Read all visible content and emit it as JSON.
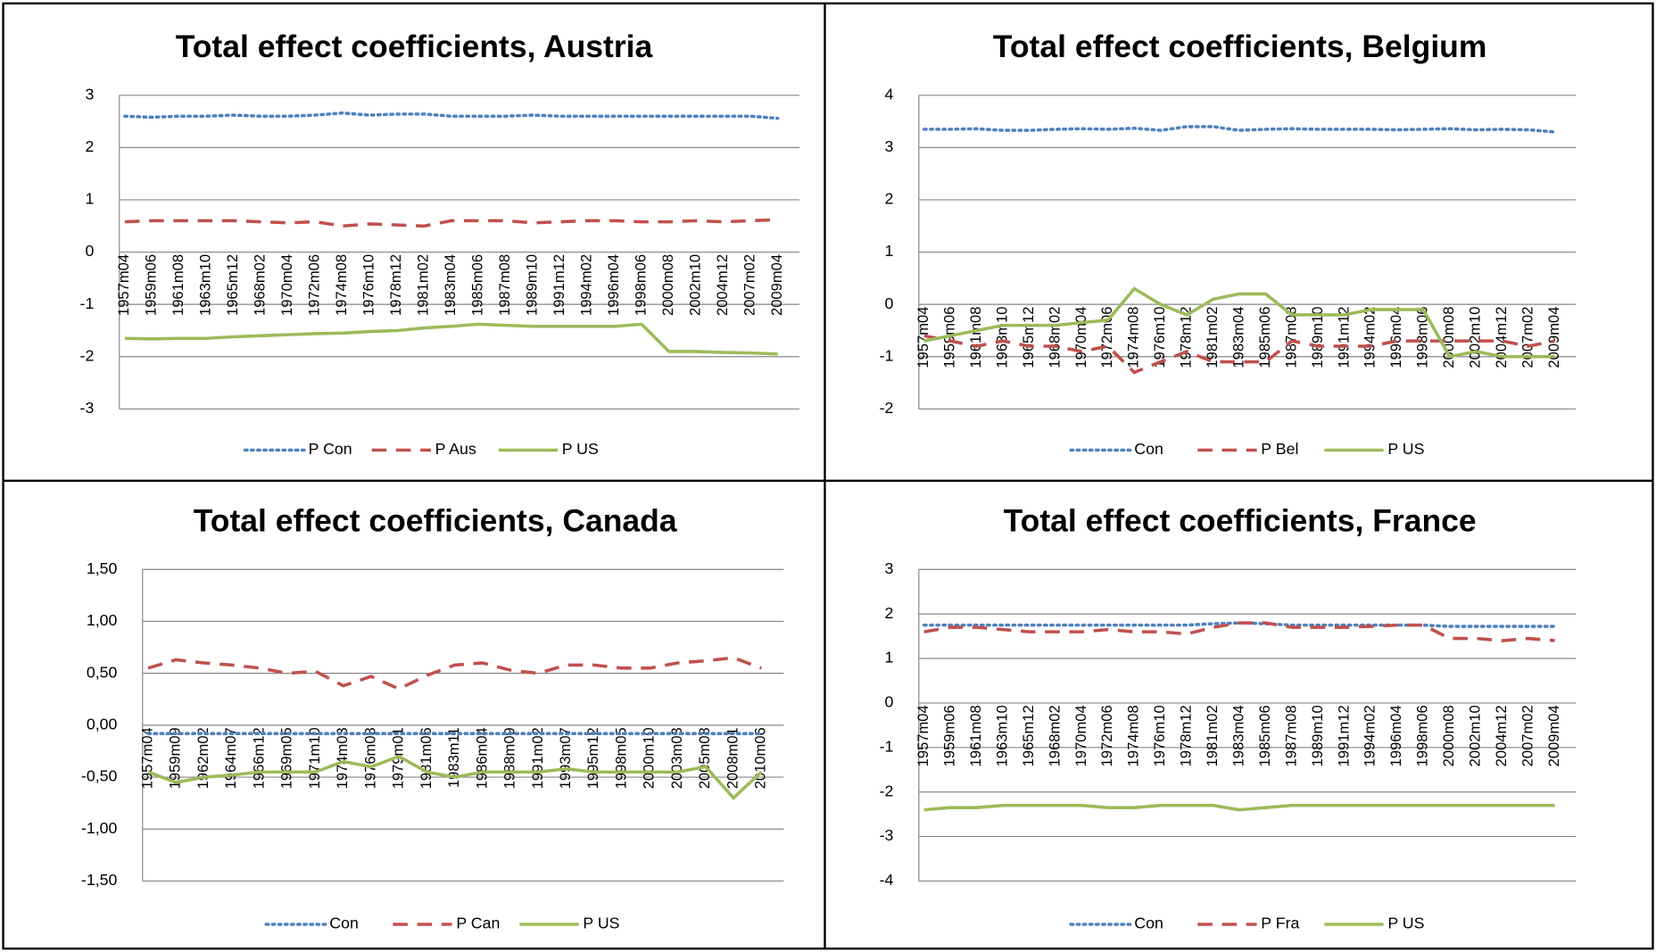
{
  "chart_data": [
    {
      "type": "line",
      "title": "Total effect coefficients, Austria",
      "categories": [
        "1957m04",
        "1959m06",
        "1961m08",
        "1963m10",
        "1965m12",
        "1968m02",
        "1970m04",
        "1972m06",
        "1974m08",
        "1976m10",
        "1978m12",
        "1981m02",
        "1983m04",
        "1985m06",
        "1987m08",
        "1989m10",
        "1991m12",
        "1994m02",
        "1996m04",
        "1998m06",
        "2000m08",
        "2002m10",
        "2004m12",
        "2007m02",
        "2009m04"
      ],
      "series": [
        {
          "name": "P Con",
          "color": "#4f81bd",
          "style": "dotted",
          "values": [
            2.6,
            2.58,
            2.6,
            2.6,
            2.62,
            2.6,
            2.6,
            2.62,
            2.66,
            2.62,
            2.64,
            2.64,
            2.6,
            2.6,
            2.6,
            2.62,
            2.6,
            2.6,
            2.6,
            2.6,
            2.6,
            2.6,
            2.6,
            2.6,
            2.56
          ]
        },
        {
          "name": "P Aus",
          "color": "#c0504d",
          "style": "dashed",
          "values": [
            0.58,
            0.6,
            0.6,
            0.6,
            0.6,
            0.58,
            0.56,
            0.58,
            0.5,
            0.54,
            0.52,
            0.5,
            0.6,
            0.6,
            0.6,
            0.56,
            0.58,
            0.6,
            0.6,
            0.58,
            0.58,
            0.6,
            0.58,
            0.6,
            0.62
          ]
        },
        {
          "name": "P US",
          "color": "#9bbb59",
          "style": "solid",
          "values": [
            -1.65,
            -1.66,
            -1.65,
            -1.65,
            -1.62,
            -1.6,
            -1.58,
            -1.56,
            -1.55,
            -1.52,
            -1.5,
            -1.45,
            -1.42,
            -1.38,
            -1.4,
            -1.42,
            -1.42,
            -1.42,
            -1.42,
            -1.38,
            -1.9,
            -1.9,
            -1.92,
            -1.93,
            -1.95
          ]
        }
      ],
      "ylim": [
        -3,
        3
      ],
      "yticks": [
        -3,
        -2,
        -1,
        0,
        1,
        2,
        3
      ],
      "grid": true,
      "legend": "bottom"
    },
    {
      "type": "line",
      "title": "Total effect coefficients, Belgium",
      "categories": [
        "1957m04",
        "1959m06",
        "1961m08",
        "1963m10",
        "1965m12",
        "1968m02",
        "1970m04",
        "1972m06",
        "1974m08",
        "1976m10",
        "1978m12",
        "1981m02",
        "1983m04",
        "1985m06",
        "1987m08",
        "1989m10",
        "1991m12",
        "1994m02",
        "1996m04",
        "1998m06",
        "2000m08",
        "2002m10",
        "2004m12",
        "2007m02",
        "2009m04"
      ],
      "series": [
        {
          "name": "Con",
          "color": "#4f81bd",
          "style": "dotted",
          "values": [
            3.35,
            3.35,
            3.36,
            3.33,
            3.33,
            3.35,
            3.36,
            3.35,
            3.37,
            3.33,
            3.4,
            3.4,
            3.33,
            3.35,
            3.36,
            3.35,
            3.35,
            3.35,
            3.34,
            3.35,
            3.36,
            3.34,
            3.35,
            3.34,
            3.3
          ]
        },
        {
          "name": "P Bel",
          "color": "#c0504d",
          "style": "dashed",
          "values": [
            -0.6,
            -0.7,
            -0.8,
            -0.7,
            -0.8,
            -0.8,
            -0.9,
            -0.8,
            -1.3,
            -1.1,
            -0.9,
            -1.1,
            -1.1,
            -1.1,
            -0.7,
            -0.8,
            -0.8,
            -0.8,
            -0.7,
            -0.7,
            -0.7,
            -0.7,
            -0.7,
            -0.8,
            -0.7
          ]
        },
        {
          "name": "P US",
          "color": "#9bbb59",
          "style": "solid",
          "values": [
            -0.7,
            -0.6,
            -0.5,
            -0.4,
            -0.4,
            -0.4,
            -0.35,
            -0.3,
            0.3,
            0,
            -0.2,
            0.1,
            0.2,
            0.2,
            -0.2,
            -0.2,
            -0.2,
            -0.1,
            -0.1,
            -0.1,
            -1,
            -0.9,
            -1,
            -1,
            -1
          ]
        }
      ],
      "ylim": [
        -2,
        4
      ],
      "yticks": [
        -2,
        -1,
        0,
        1,
        2,
        3,
        4
      ],
      "grid": true,
      "legend": "bottom"
    },
    {
      "type": "line",
      "title": "Total effect coefficients, Canada",
      "categories": [
        "1957m04",
        "1959m09",
        "1962m02",
        "1964m07",
        "1966m12",
        "1969m05",
        "1971m10",
        "1974m03",
        "1976m08",
        "1979m01",
        "1981m06",
        "1983m11",
        "1986m04",
        "1988m09",
        "1991m02",
        "1993m07",
        "1995m12",
        "1998m05",
        "2000m10",
        "2003m03",
        "2005m08",
        "2008m01",
        "2010m06"
      ],
      "series": [
        {
          "name": "Con",
          "color": "#4f81bd",
          "style": "dotted",
          "values": [
            -0.08,
            -0.08,
            -0.08,
            -0.08,
            -0.08,
            -0.08,
            -0.08,
            -0.08,
            -0.08,
            -0.08,
            -0.08,
            -0.08,
            -0.08,
            -0.08,
            -0.08,
            -0.08,
            -0.08,
            -0.08,
            -0.08,
            -0.08,
            -0.08,
            -0.08,
            -0.08
          ]
        },
        {
          "name": "P Can",
          "color": "#c0504d",
          "style": "dashed",
          "values": [
            0.55,
            0.63,
            0.6,
            0.58,
            0.55,
            0.5,
            0.52,
            0.38,
            0.47,
            0.35,
            0.48,
            0.58,
            0.6,
            0.53,
            0.5,
            0.58,
            0.58,
            0.55,
            0.55,
            0.6,
            0.62,
            0.65,
            0.55
          ]
        },
        {
          "name": "P US",
          "color": "#9bbb59",
          "style": "solid",
          "values": [
            -0.45,
            -0.55,
            -0.5,
            -0.48,
            -0.45,
            -0.45,
            -0.45,
            -0.35,
            -0.4,
            -0.3,
            -0.45,
            -0.5,
            -0.45,
            -0.45,
            -0.45,
            -0.42,
            -0.45,
            -0.45,
            -0.45,
            -0.45,
            -0.4,
            -0.7,
            -0.45
          ]
        }
      ],
      "ylim": [
        -1.5,
        1.5
      ],
      "yticks": [
        {
          "value": -1.5,
          "label": "-1,50"
        },
        {
          "value": -1,
          "label": "-1,00"
        },
        {
          "value": -0.5,
          "label": "-0,50"
        },
        {
          "value": 0,
          "label": "0,00"
        },
        {
          "value": 0.5,
          "label": "0,50"
        },
        {
          "value": 1,
          "label": "1,00"
        },
        {
          "value": 1.5,
          "label": "1,50"
        }
      ],
      "grid": true,
      "legend": "bottom"
    },
    {
      "type": "line",
      "title": "Total effect coefficients, France",
      "categories": [
        "1957m04",
        "1959m06",
        "1961m08",
        "1963m10",
        "1965m12",
        "1968m02",
        "1970m04",
        "1972m06",
        "1974m08",
        "1976m10",
        "1978m12",
        "1981m02",
        "1983m04",
        "1985m06",
        "1987m08",
        "1989m10",
        "1991m12",
        "1994m02",
        "1996m04",
        "1998m06",
        "2000m08",
        "2002m10",
        "2004m12",
        "2007m02",
        "2009m04"
      ],
      "series": [
        {
          "name": "Con",
          "color": "#4f81bd",
          "style": "dotted",
          "values": [
            1.75,
            1.75,
            1.75,
            1.75,
            1.75,
            1.75,
            1.75,
            1.75,
            1.75,
            1.75,
            1.75,
            1.78,
            1.8,
            1.78,
            1.75,
            1.75,
            1.75,
            1.75,
            1.75,
            1.75,
            1.72,
            1.72,
            1.72,
            1.72,
            1.72
          ]
        },
        {
          "name": "P Fra",
          "color": "#c0504d",
          "style": "dashed",
          "values": [
            1.6,
            1.7,
            1.7,
            1.65,
            1.6,
            1.6,
            1.6,
            1.65,
            1.6,
            1.6,
            1.55,
            1.7,
            1.8,
            1.8,
            1.7,
            1.7,
            1.7,
            1.72,
            1.75,
            1.75,
            1.45,
            1.45,
            1.4,
            1.45,
            1.4
          ]
        },
        {
          "name": "P US",
          "color": "#9bbb59",
          "style": "solid",
          "values": [
            -2.4,
            -2.35,
            -2.35,
            -2.3,
            -2.3,
            -2.3,
            -2.3,
            -2.35,
            -2.35,
            -2.3,
            -2.3,
            -2.3,
            -2.4,
            -2.35,
            -2.3,
            -2.3,
            -2.3,
            -2.3,
            -2.3,
            -2.3,
            -2.3,
            -2.3,
            -2.3,
            -2.3,
            -2.3
          ]
        }
      ],
      "ylim": [
        -4,
        3
      ],
      "yticks": [
        -4,
        -3,
        -2,
        -1,
        0,
        1,
        2,
        3
      ],
      "grid": true,
      "legend": "bottom"
    }
  ]
}
